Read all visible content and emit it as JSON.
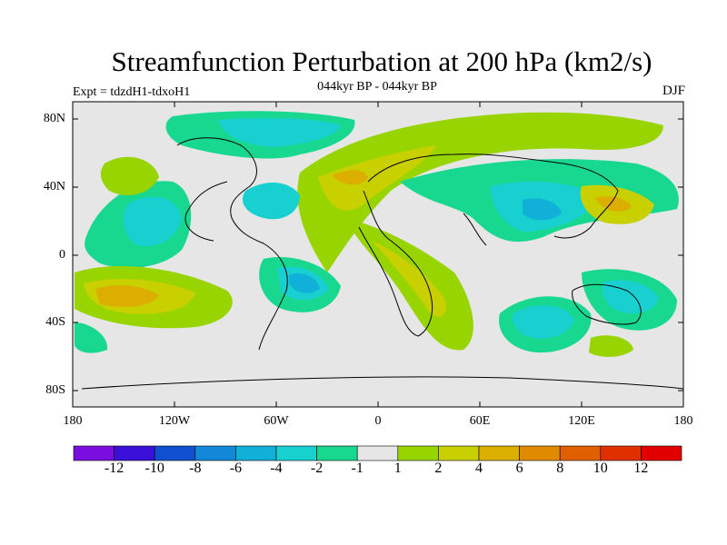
{
  "title": "Streamfunction Perturbation at 200 hPa (km2/s)",
  "subtitle": "044kyr BP - 044kyr BP",
  "experiment": "Expt = tdzdH1-tdxoH1",
  "season": "DJF",
  "lat_labels": [
    "80N",
    "40N",
    "0",
    "40S",
    "80S"
  ],
  "lon_labels": [
    "180",
    "120W",
    "60W",
    "0",
    "60E",
    "120E",
    "180"
  ],
  "colorbar": {
    "labels": [
      "-12",
      "-10",
      "-8",
      "-6",
      "-4",
      "-2",
      "-1",
      "1",
      "2",
      "4",
      "6",
      "8",
      "10",
      "12"
    ],
    "colors": [
      "#7a0ee0",
      "#3a10d8",
      "#1050d0",
      "#1488d8",
      "#10b0d8",
      "#18d0d0",
      "#18d890",
      "#e6e6e6",
      "#98d400",
      "#c8d000",
      "#dcae00",
      "#e08a00",
      "#e06000",
      "#e03000",
      "#e00000"
    ]
  },
  "colors": {
    "background_field": "#e6e6e6",
    "neg_weak": "#18d890",
    "neg_mid": "#18d0d0",
    "neg_strong": "#10b0d8",
    "neg_stronger": "#1488d8",
    "pos_weak": "#98d400",
    "pos_mid": "#c8d000",
    "pos_strong": "#dcae00",
    "pos_stronger": "#e08a00"
  }
}
